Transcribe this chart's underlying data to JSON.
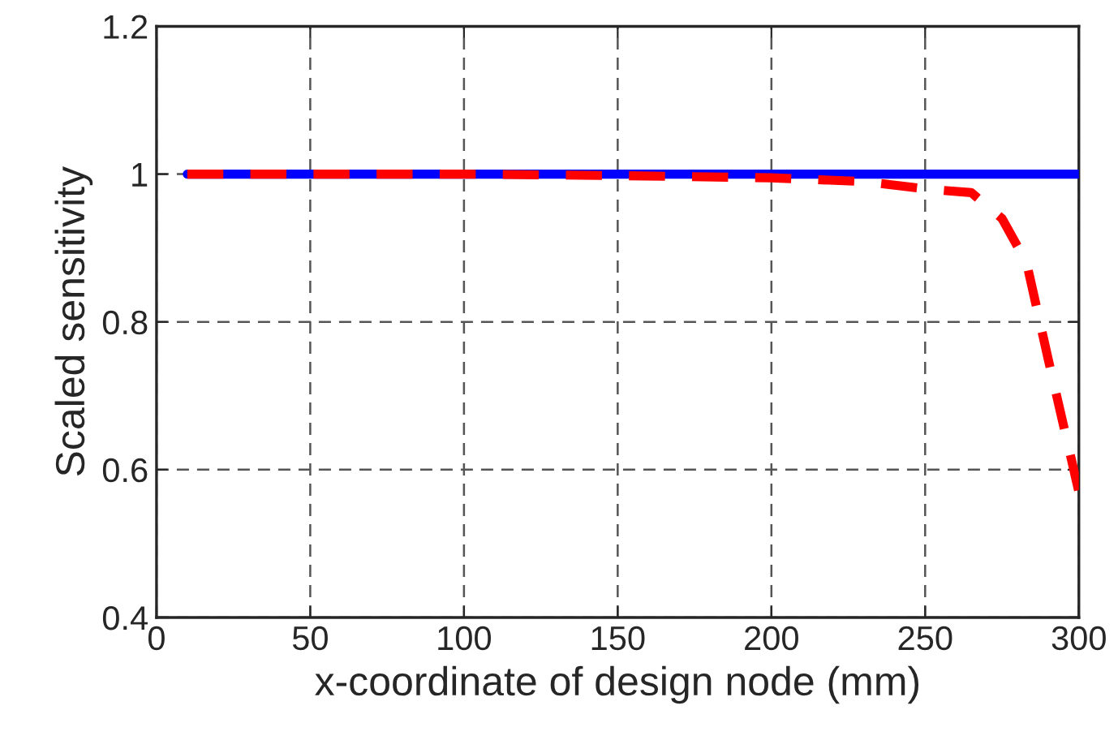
{
  "chart_data": {
    "type": "line",
    "xlabel": "x-coordinate of design node (mm)",
    "ylabel": "Scaled sensitivity",
    "xlim": [
      0,
      300
    ],
    "xticks": [
      0,
      50,
      100,
      150,
      200,
      250,
      300
    ],
    "ylim": [
      0.4,
      1.2
    ],
    "yticks": [
      0.4,
      0.6,
      0.8,
      1,
      1.2
    ],
    "grid": true,
    "legend": false,
    "series": [
      {
        "color": "#0000ff",
        "line_style": "solid",
        "x": [
          10,
          300
        ],
        "values": [
          1.0,
          1.0
        ]
      },
      {
        "color": "#ff0000",
        "line_style": "dashed",
        "x": [
          10,
          50,
          100,
          150,
          200,
          230,
          250,
          265,
          275,
          283,
          290,
          295,
          300
        ],
        "values": [
          1.0,
          1.0,
          1.0,
          0.998,
          0.995,
          0.99,
          0.98,
          0.975,
          0.94,
          0.88,
          0.75,
          0.66,
          0.57
        ]
      }
    ]
  }
}
